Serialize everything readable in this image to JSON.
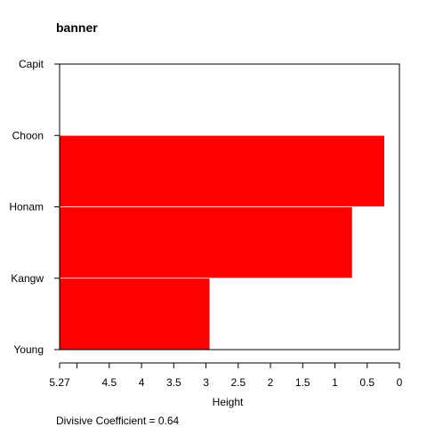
{
  "chart_data": {
    "type": "bar",
    "orientation": "horizontal",
    "title": "banner",
    "xlabel": "Height",
    "categories": [
      "Capit",
      "Choon",
      "Honam",
      "Kangw",
      "Young"
    ],
    "x_axis": {
      "reversed": true,
      "range": [
        5.27,
        0
      ],
      "ticks": [
        5.27,
        5,
        4.5,
        4,
        3.5,
        3,
        2.5,
        2,
        1.5,
        1,
        0.5,
        0
      ],
      "tick_labels": [
        "5.27",
        "",
        "4.5",
        "4",
        "3.5",
        "3",
        "2.5",
        "2",
        "1.5",
        "1",
        "0.5",
        "0"
      ]
    },
    "bars": [
      {
        "from": "Choon",
        "to": "Honam",
        "start": 5.27,
        "end": 0.23
      },
      {
        "from": "Honam",
        "to": "Kangw",
        "start": 5.27,
        "end": 0.73
      },
      {
        "from": "Kangw",
        "to": "Young",
        "start": 5.27,
        "end": 2.94
      }
    ],
    "bar_color": "#ff0000",
    "footnote_label": "Divisive Coefficient = ",
    "footnote_value": "0.64"
  }
}
